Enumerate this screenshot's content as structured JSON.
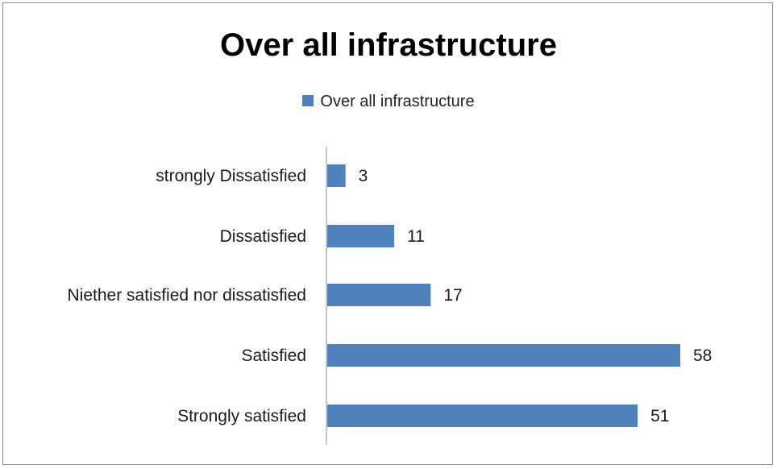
{
  "chart_data": {
    "type": "bar",
    "orientation": "horizontal",
    "title": "Over all infrastructure",
    "categories": [
      "strongly Dissatisfied",
      "Dissatisfied",
      "Niether satisfied nor dissatisfied",
      "Satisfied",
      "Strongly satisfied"
    ],
    "series": [
      {
        "name": "Over all infrastructure",
        "values": [
          3,
          11,
          17,
          58,
          51
        ],
        "color": "#4f81bd"
      }
    ],
    "data_labels": true,
    "legend_position": "top",
    "grid": false,
    "xlim": [
      0,
      60
    ]
  }
}
